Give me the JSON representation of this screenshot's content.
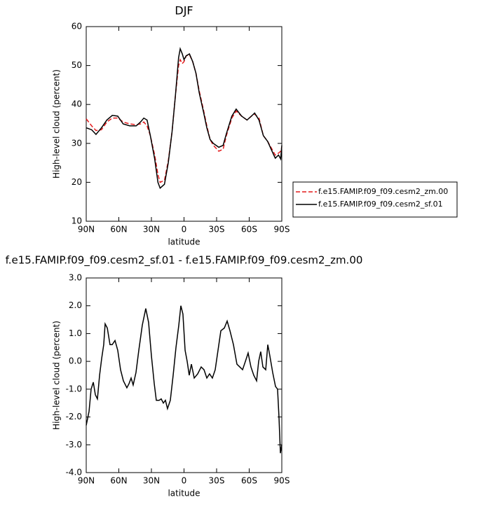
{
  "chart_data": [
    {
      "type": "line",
      "title": "DJF",
      "xlabel": "latitude",
      "ylabel": "High-level cloud (percent)",
      "x": [
        90,
        85,
        81,
        76,
        71,
        66,
        61,
        56,
        50,
        44,
        40,
        37,
        34,
        31,
        27,
        24,
        22,
        18,
        14.5,
        11,
        8,
        5,
        3.5,
        1.6,
        0,
        -2,
        -5,
        -8,
        -11,
        -14,
        -18,
        -21,
        -24,
        -27,
        -32,
        -36,
        -39,
        -44,
        -48,
        -53,
        -58,
        -62,
        -65,
        -69,
        -73,
        -77,
        -81,
        -84,
        -87,
        -89,
        -90
      ],
      "series": [
        {
          "name": "f.e15.FAMIP.f09_f09.cesm2_zm.00",
          "color": "#e41a1c",
          "dash": true,
          "values": [
            36.3,
            34.5,
            33.3,
            33.5,
            35.5,
            36.5,
            36.5,
            35.5,
            35,
            34.8,
            35,
            35.5,
            34.5,
            32,
            27,
            22,
            20,
            20.5,
            25.5,
            33,
            42,
            50,
            51.5,
            50.5,
            51,
            52.5,
            52.8,
            51,
            48,
            43.5,
            38.5,
            34.5,
            31,
            29.5,
            28,
            28.5,
            32,
            36.5,
            38.3,
            37,
            36,
            37,
            37.5,
            36.5,
            32,
            30.5,
            28.5,
            27,
            27.5,
            28,
            29
          ]
        },
        {
          "name": "f.e15.FAMIP.f09_f09.cesm2_sf.01",
          "color": "#000000",
          "dash": false,
          "values": [
            34,
            33.5,
            32.3,
            34,
            36,
            37.2,
            37,
            35,
            34.5,
            34.5,
            35.5,
            36.5,
            36,
            32,
            26,
            20,
            18.5,
            19.5,
            25,
            33,
            42,
            52,
            54.3,
            53,
            51.5,
            52.5,
            53,
            51,
            48,
            43,
            38,
            34,
            31,
            30,
            29,
            29.5,
            32.5,
            37,
            38.8,
            37,
            36,
            37,
            37.8,
            36,
            32,
            30.5,
            28,
            26.2,
            27,
            26,
            29.5
          ]
        }
      ],
      "xlim": [
        90,
        -90
      ],
      "xticks": [
        {
          "value": 90,
          "label": "90N"
        },
        {
          "value": 60,
          "label": "60N"
        },
        {
          "value": 30,
          "label": "30N"
        },
        0,
        {
          "value": -30,
          "label": "30S"
        },
        {
          "value": -60,
          "label": "60S"
        },
        {
          "value": -90,
          "label": "90S"
        }
      ],
      "ylim": [
        10,
        60
      ],
      "yticks": [
        10,
        20,
        30,
        40,
        50,
        60
      ],
      "legend": "outside-right"
    },
    {
      "type": "line",
      "title": "f.e15.FAMIP.f09_f09.cesm2_sf.01 - f.e15.FAMIP.f09_f09.cesm2_zm.00",
      "xlabel": "latitude",
      "ylabel": "High-level cloud (percent)",
      "x": [
        90,
        87.4,
        85.5,
        83.5,
        81.6,
        79.7,
        77.7,
        75.8,
        73.9,
        72.6,
        70.6,
        68.1,
        66.1,
        63.5,
        61,
        58.4,
        55.8,
        52.6,
        50.6,
        48.7,
        46.8,
        44.2,
        41.6,
        38.4,
        35.2,
        32.6,
        30,
        27.4,
        25.5,
        22.9,
        21,
        19,
        17.1,
        15.2,
        12.6,
        10,
        7.4,
        4.8,
        2.9,
        1,
        -1,
        -2.9,
        -4.8,
        -6.8,
        -9.4,
        -12.6,
        -15.8,
        -18.4,
        -21,
        -23.5,
        -26.1,
        -28.7,
        -31.3,
        -33.9,
        -37.1,
        -39.7,
        -42.3,
        -45.5,
        -48.7,
        -51.3,
        -53.9,
        -56.5,
        -59,
        -61.6,
        -64.2,
        -66.8,
        -68.7,
        -70.6,
        -72.6,
        -75.2,
        -77.1,
        -79,
        -81.6,
        -84.2,
        -86.1,
        -87.4,
        -88.7,
        -90
      ],
      "series": [
        {
          "color": "#000000",
          "values": [
            -2.3,
            -1.8,
            -1,
            -0.75,
            -1.2,
            -1.35,
            -0.5,
            0.1,
            0.6,
            1.35,
            1.2,
            0.6,
            0.6,
            0.75,
            0.4,
            -0.3,
            -0.7,
            -0.95,
            -0.8,
            -0.6,
            -0.85,
            -0.4,
            0.4,
            1.3,
            1.9,
            1.4,
            0.2,
            -0.8,
            -1.4,
            -1.4,
            -1.35,
            -1.5,
            -1.4,
            -1.7,
            -1.4,
            -0.5,
            0.5,
            1.3,
            2,
            1.7,
            0.4,
            0,
            -0.5,
            -0.1,
            -0.6,
            -0.45,
            -0.2,
            -0.3,
            -0.6,
            -0.45,
            -0.6,
            -0.3,
            0.4,
            1.1,
            1.2,
            1.45,
            1.1,
            0.6,
            -0.1,
            -0.2,
            -0.3,
            0,
            0.3,
            -0.2,
            -0.5,
            -0.7,
            0,
            0.35,
            -0.2,
            -0.3,
            0.6,
            0.2,
            -0.4,
            -0.9,
            -1,
            -2,
            -3.3,
            -3
          ]
        }
      ],
      "xlim": [
        90,
        -90
      ],
      "xticks": [
        {
          "value": 90,
          "label": "90N"
        },
        {
          "value": 60,
          "label": "60N"
        },
        {
          "value": 30,
          "label": "30N"
        },
        0,
        {
          "value": -30,
          "label": "30S"
        },
        {
          "value": -60,
          "label": "60S"
        },
        {
          "value": -90,
          "label": "90S"
        }
      ],
      "ylim": [
        -4,
        3
      ],
      "yticks": [
        {
          "value": -4,
          "label": "-4.0"
        },
        {
          "value": -3,
          "label": "-3.0"
        },
        {
          "value": -2,
          "label": "-2.0"
        },
        {
          "value": -1,
          "label": "-1.0"
        },
        {
          "value": 0,
          "label": "0.0"
        },
        {
          "value": 1,
          "label": "1.0"
        },
        {
          "value": 2,
          "label": "2.0"
        },
        {
          "value": 3,
          "label": "3.0"
        }
      ]
    }
  ]
}
